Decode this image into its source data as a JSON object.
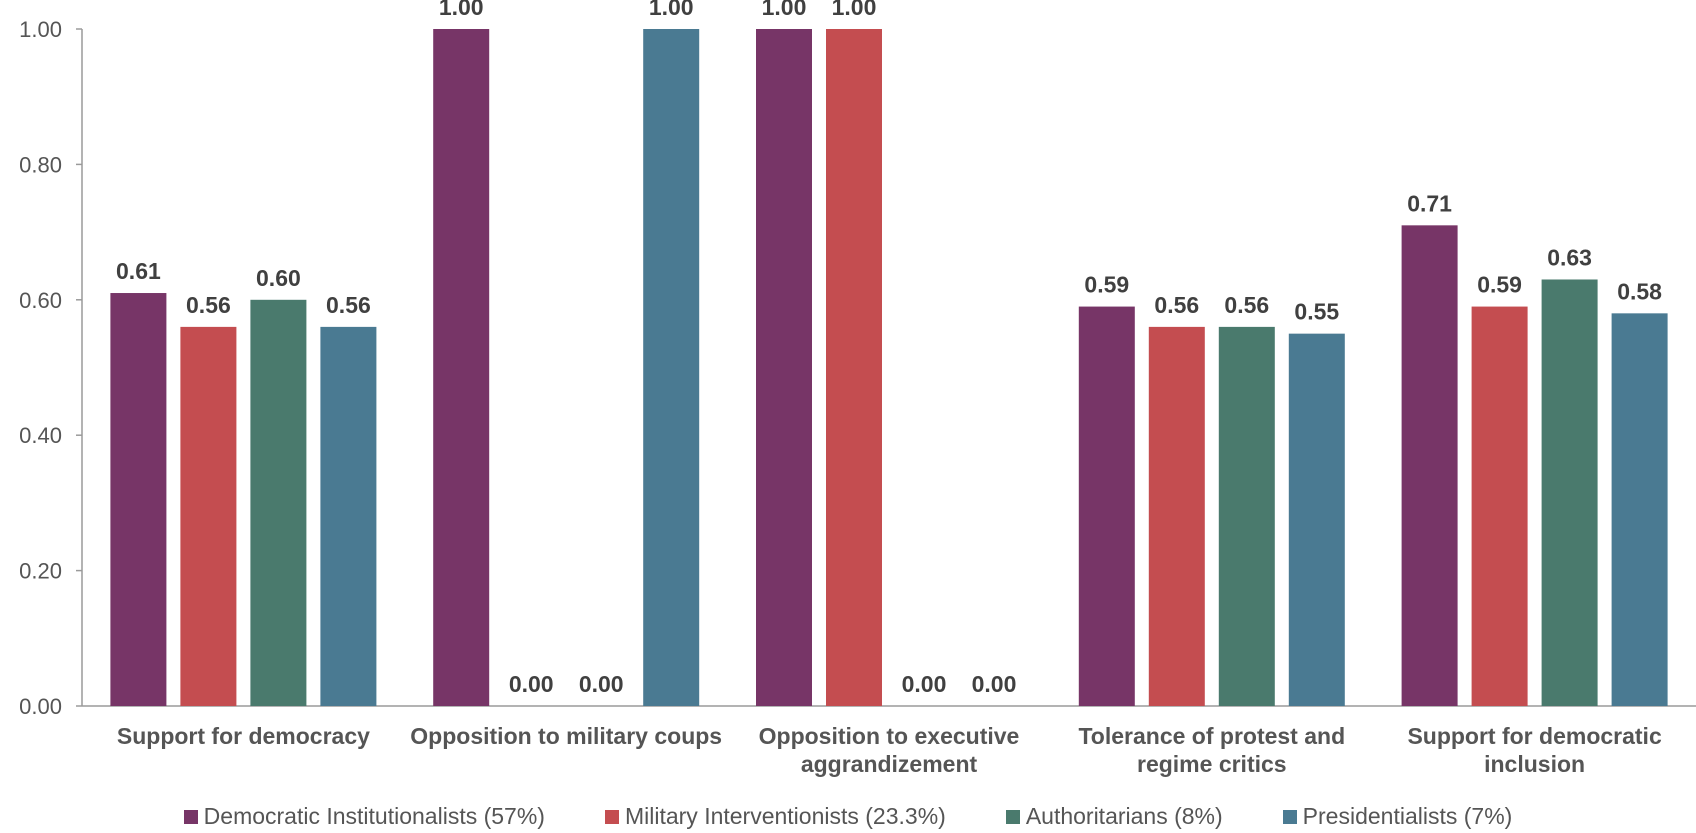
{
  "chart_data": {
    "type": "bar",
    "categories": [
      [
        "Support for democracy"
      ],
      [
        "Opposition to military coups"
      ],
      [
        "Opposition to executive",
        "aggrandizement"
      ],
      [
        "Tolerance of protest and",
        "regime critics"
      ],
      [
        "Support for democratic",
        "inclusion"
      ]
    ],
    "series": [
      {
        "name": "Democratic Institutionalists (57%)",
        "color": "#773567",
        "values": [
          0.61,
          1.0,
          1.0,
          0.59,
          0.71
        ]
      },
      {
        "name": "Military Interventionists (23.3%)",
        "color": "#C44D50",
        "values": [
          0.56,
          0.0,
          1.0,
          0.56,
          0.59
        ]
      },
      {
        "name": "Authoritarians (8%)",
        "color": "#4A7A6D",
        "values": [
          0.6,
          0.0,
          0.0,
          0.56,
          0.63
        ]
      },
      {
        "name": "Presidentialists (7%)",
        "color": "#4A7A92",
        "values": [
          0.56,
          1.0,
          0.0,
          0.55,
          0.58
        ]
      }
    ],
    "yticks": [
      "0.00",
      "0.20",
      "0.40",
      "0.60",
      "0.80",
      "1.00"
    ],
    "ylim": [
      0,
      1.0
    ],
    "grid": false,
    "legend_position": "bottom"
  }
}
